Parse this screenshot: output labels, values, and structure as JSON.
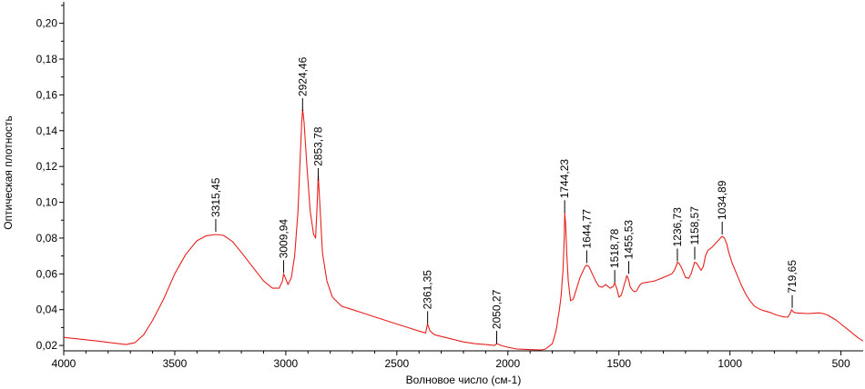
{
  "chart_data": {
    "type": "line",
    "xlabel": "Волновое число (см-1)",
    "ylabel": "Оптическая плотность",
    "xlim": [
      4000,
      400
    ],
    "ylim": [
      0.017,
      0.212
    ],
    "x_reversed": true,
    "grid": false,
    "legend": "none",
    "line_color": "#e8201c",
    "xticks": [
      {
        "value": 4000,
        "label": "4000"
      },
      {
        "value": 3500,
        "label": "3500"
      },
      {
        "value": 3000,
        "label": "3000"
      },
      {
        "value": 2500,
        "label": "2500"
      },
      {
        "value": 2000,
        "label": "2000"
      },
      {
        "value": 1500,
        "label": "1500"
      },
      {
        "value": 1000,
        "label": "1000"
      },
      {
        "value": 500,
        "label": "500"
      }
    ],
    "yticks": [
      {
        "value": 0.02,
        "label": "0,02"
      },
      {
        "value": 0.04,
        "label": "0,04"
      },
      {
        "value": 0.06,
        "label": "0,06"
      },
      {
        "value": 0.08,
        "label": "0,08"
      },
      {
        "value": 0.1,
        "label": "0,10"
      },
      {
        "value": 0.12,
        "label": "0,12"
      },
      {
        "value": 0.14,
        "label": "0,14"
      },
      {
        "value": 0.16,
        "label": "0,16"
      },
      {
        "value": 0.18,
        "label": "0,18"
      },
      {
        "value": 0.2,
        "label": "0,20"
      }
    ],
    "peaks": [
      {
        "x": 3315.45,
        "y": 0.0825,
        "label": "3315,45"
      },
      {
        "x": 3009.94,
        "y": 0.0595,
        "label": "3009,94"
      },
      {
        "x": 2924.46,
        "y": 0.15,
        "label": "2924,46"
      },
      {
        "x": 2853.78,
        "y": 0.111,
        "label": "2853,78"
      },
      {
        "x": 2361.35,
        "y": 0.031,
        "label": "2361,35"
      },
      {
        "x": 2050.27,
        "y": 0.02,
        "label": "2050,27"
      },
      {
        "x": 1744.23,
        "y": 0.093,
        "label": "1744,23"
      },
      {
        "x": 1644.77,
        "y": 0.065,
        "label": "1644,77"
      },
      {
        "x": 1518.78,
        "y": 0.054,
        "label": "1518,78"
      },
      {
        "x": 1455.53,
        "y": 0.059,
        "label": "1455,53"
      },
      {
        "x": 1236.73,
        "y": 0.066,
        "label": "1236,73"
      },
      {
        "x": 1158.57,
        "y": 0.067,
        "label": "1158,57"
      },
      {
        "x": 1034.89,
        "y": 0.081,
        "label": "1034,89"
      },
      {
        "x": 719.65,
        "y": 0.04,
        "label": "719,65"
      }
    ],
    "series": [
      {
        "x": [
          4000,
          3850,
          3720,
          3680,
          3640,
          3600,
          3550,
          3500,
          3450,
          3400,
          3360,
          3315,
          3280,
          3240,
          3200,
          3150,
          3100,
          3060,
          3030,
          3015,
          3010,
          3003,
          2990,
          2975,
          2960,
          2945,
          2935,
          2928,
          2924,
          2918,
          2905,
          2890,
          2875,
          2866,
          2860,
          2854,
          2846,
          2835,
          2815,
          2790,
          2750,
          2700,
          2650,
          2600,
          2500,
          2450,
          2400,
          2370,
          2362,
          2350,
          2330,
          2300,
          2250,
          2200,
          2150,
          2100,
          2060,
          2050,
          2030,
          2000,
          1960,
          1920,
          1880,
          1850,
          1830,
          1800,
          1790,
          1780,
          1775,
          1768,
          1760,
          1752,
          1746,
          1744,
          1740,
          1735,
          1728,
          1718,
          1705,
          1690,
          1675,
          1660,
          1650,
          1645,
          1635,
          1620,
          1605,
          1590,
          1575,
          1560,
          1540,
          1525,
          1519,
          1510,
          1500,
          1490,
          1480,
          1475,
          1470,
          1465,
          1460,
          1455,
          1450,
          1440,
          1430,
          1420,
          1410,
          1400,
          1390,
          1380,
          1360,
          1340,
          1320,
          1300,
          1280,
          1262,
          1250,
          1240,
          1237,
          1230,
          1220,
          1210,
          1200,
          1185,
          1175,
          1165,
          1159,
          1150,
          1140,
          1130,
          1120,
          1110,
          1100,
          1090,
          1080,
          1065,
          1050,
          1040,
          1035,
          1025,
          1015,
          1005,
          990,
          970,
          950,
          930,
          910,
          890,
          870,
          850,
          820,
          790,
          760,
          740,
          730,
          722,
          720,
          712,
          700,
          680,
          650,
          620,
          600,
          580,
          560,
          540,
          520,
          500,
          480,
          460,
          440,
          420,
          400
        ],
        "y": [
          0.0245,
          0.0225,
          0.0205,
          0.0215,
          0.026,
          0.034,
          0.046,
          0.06,
          0.071,
          0.0785,
          0.0812,
          0.082,
          0.0815,
          0.078,
          0.072,
          0.064,
          0.056,
          0.052,
          0.052,
          0.056,
          0.06,
          0.058,
          0.054,
          0.058,
          0.07,
          0.095,
          0.125,
          0.145,
          0.152,
          0.145,
          0.12,
          0.095,
          0.082,
          0.08,
          0.095,
          0.115,
          0.098,
          0.072,
          0.056,
          0.047,
          0.042,
          0.04,
          0.038,
          0.036,
          0.032,
          0.03,
          0.028,
          0.027,
          0.032,
          0.028,
          0.026,
          0.025,
          0.0235,
          0.022,
          0.021,
          0.0205,
          0.02,
          0.021,
          0.02,
          0.019,
          0.018,
          0.0178,
          0.0176,
          0.0175,
          0.018,
          0.021,
          0.025,
          0.03,
          0.035,
          0.04,
          0.048,
          0.062,
          0.08,
          0.094,
          0.088,
          0.072,
          0.056,
          0.045,
          0.046,
          0.052,
          0.058,
          0.062,
          0.0645,
          0.0648,
          0.064,
          0.06,
          0.056,
          0.053,
          0.0525,
          0.054,
          0.052,
          0.053,
          0.055,
          0.052,
          0.047,
          0.048,
          0.052,
          0.0545,
          0.056,
          0.059,
          0.058,
          0.056,
          0.053,
          0.051,
          0.05,
          0.0505,
          0.053,
          0.0545,
          0.055,
          0.0552,
          0.0556,
          0.056,
          0.057,
          0.058,
          0.059,
          0.06,
          0.062,
          0.065,
          0.0665,
          0.066,
          0.064,
          0.061,
          0.058,
          0.0575,
          0.06,
          0.064,
          0.0665,
          0.066,
          0.064,
          0.062,
          0.064,
          0.07,
          0.073,
          0.074,
          0.075,
          0.077,
          0.079,
          0.0805,
          0.081,
          0.08,
          0.077,
          0.072,
          0.066,
          0.06,
          0.054,
          0.049,
          0.045,
          0.042,
          0.0405,
          0.0395,
          0.0385,
          0.037,
          0.036,
          0.0358,
          0.0375,
          0.04,
          0.0395,
          0.0385,
          0.0382,
          0.038,
          0.0378,
          0.038,
          0.0382,
          0.0378,
          0.037,
          0.0355,
          0.034,
          0.032,
          0.03,
          0.028,
          0.026,
          0.024,
          0.0225
        ]
      }
    ]
  }
}
